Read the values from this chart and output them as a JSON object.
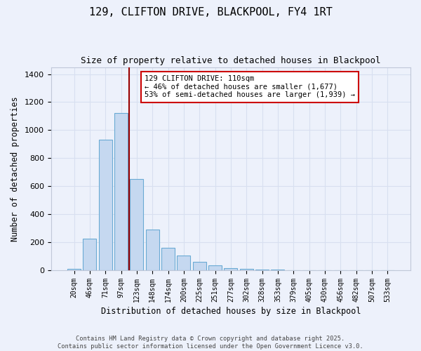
{
  "title1": "129, CLIFTON DRIVE, BLACKPOOL, FY4 1RT",
  "title2": "Size of property relative to detached houses in Blackpool",
  "xlabel": "Distribution of detached houses by size in Blackpool",
  "ylabel": "Number of detached properties",
  "bar_color": "#c5d8f0",
  "bar_edge_color": "#6aaad4",
  "background_color": "#edf1fb",
  "grid_color": "#d8dff0",
  "bin_labels": [
    "20sqm",
    "46sqm",
    "71sqm",
    "97sqm",
    "123sqm",
    "148sqm",
    "174sqm",
    "200sqm",
    "225sqm",
    "251sqm",
    "277sqm",
    "302sqm",
    "328sqm",
    "353sqm",
    "379sqm",
    "405sqm",
    "430sqm",
    "456sqm",
    "482sqm",
    "507sqm",
    "533sqm"
  ],
  "bar_heights": [
    10,
    225,
    930,
    1120,
    650,
    290,
    160,
    105,
    60,
    35,
    15,
    10,
    5,
    3,
    2,
    1,
    0,
    0,
    0,
    0,
    0
  ],
  "vline_position": 3.5,
  "vline_color": "#990000",
  "annotation_text": "129 CLIFTON DRIVE: 110sqm\n← 46% of detached houses are smaller (1,677)\n53% of semi-detached houses are larger (1,939) →",
  "annotation_box_facecolor": "#ffffff",
  "annotation_box_edgecolor": "#cc0000",
  "ylim": [
    0,
    1450
  ],
  "yticks": [
    0,
    200,
    400,
    600,
    800,
    1000,
    1200,
    1400
  ],
  "footnote": "Contains HM Land Registry data © Crown copyright and database right 2025.\nContains public sector information licensed under the Open Government Licence v3.0."
}
